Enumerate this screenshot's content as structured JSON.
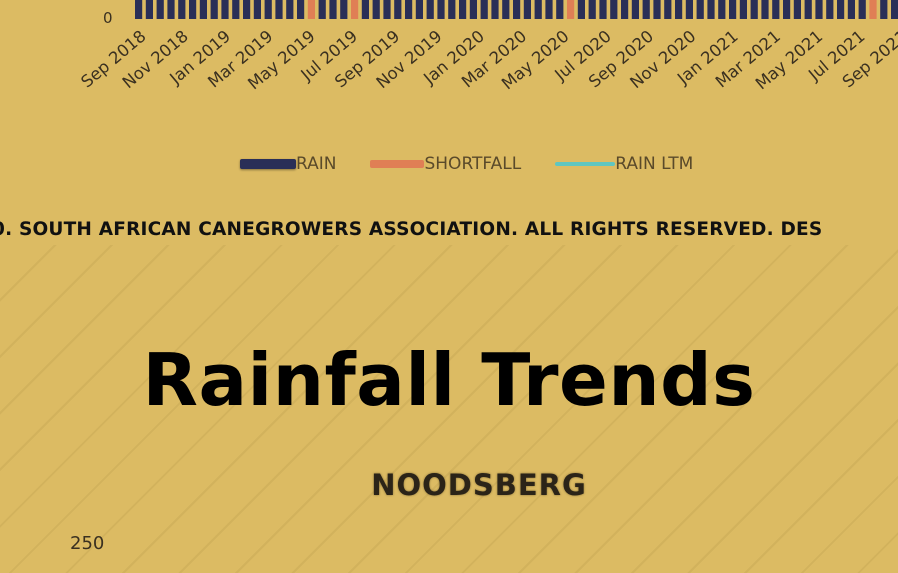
{
  "chart_data": {
    "type": "bar",
    "categories": [
      "Sep 2018",
      "Nov 2018",
      "Jan 2019",
      "Mar 2019",
      "May 2019",
      "Jul 2019",
      "Sep 2019",
      "Nov 2019",
      "Jan 2020",
      "Mar 2020",
      "May 2020",
      "Jul 2020",
      "Sep 2020",
      "Nov 2020",
      "Jan 2021",
      "Mar 2021",
      "May 2021",
      "Jul 2021",
      "Sep 2021"
    ],
    "visible_ytick": "0",
    "legend": [
      "RAIN",
      "SHORTFALL",
      "RAIN LTM"
    ],
    "legend_placement": "bottom",
    "colors": {
      "rain": "#2a2f57",
      "shortfall": "#e07f55",
      "rain_ltm": "#5fc6c0"
    }
  },
  "copyright": "0. SOUTH AFRICAN CANEGROWERS ASSOCIATION. ALL RIGHTS RESERVED. DES",
  "page_title": "Rainfall Trends",
  "lower_chart": {
    "title": "NOODSBERG",
    "ytick_top": "250"
  }
}
